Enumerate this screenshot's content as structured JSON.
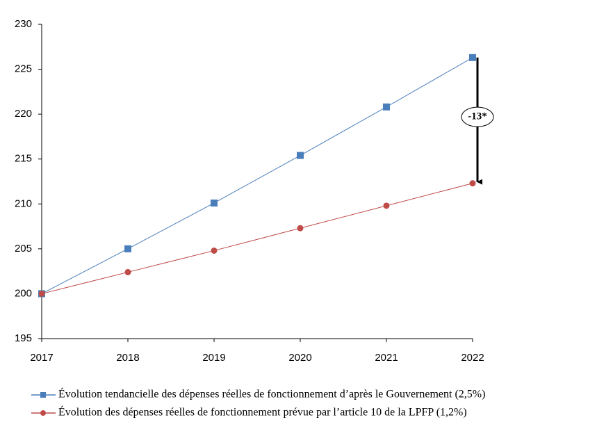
{
  "chart_data": {
    "type": "line",
    "categories": [
      "2017",
      "2018",
      "2019",
      "2020",
      "2021",
      "2022"
    ],
    "series": [
      {
        "name": "Évolution tendancielle des dépenses réelles de fonctionnement d’après le Gouvernement (2,5%)",
        "color": "#4a7ebb",
        "marker": "square",
        "values": [
          200,
          205,
          210.1,
          215.4,
          220.8,
          226.3
        ]
      },
      {
        "name": "Évolution des dépenses réelles de fonctionnement prévue par l’article 10 de la LPFP (1,2%)",
        "color": "#be4b48",
        "marker": "circle",
        "values": [
          200,
          202.4,
          204.8,
          207.3,
          209.8,
          212.3
        ]
      }
    ],
    "ylim": [
      195,
      230
    ],
    "yticks": [
      195,
      200,
      205,
      210,
      215,
      220,
      225,
      230
    ],
    "grid": false,
    "legend": "bottom",
    "annotation": "-13*"
  }
}
